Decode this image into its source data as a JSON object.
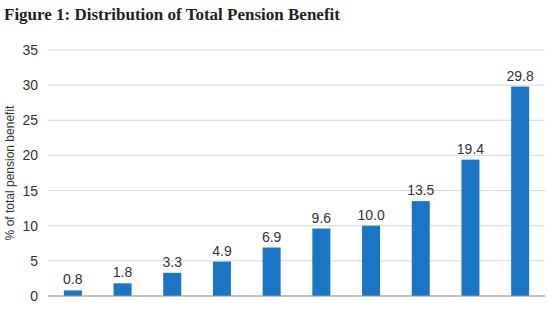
{
  "chart_data": {
    "type": "bar",
    "title": "Figure 1: Distribution of Total Pension Benefit",
    "ylabel": "% of total pension benefit",
    "categories": [
      null,
      null,
      null,
      null,
      null,
      null,
      null,
      null,
      null,
      null
    ],
    "values": [
      0.8,
      1.8,
      3.3,
      4.9,
      6.9,
      9.6,
      10.0,
      13.5,
      19.4,
      29.8
    ],
    "value_labels": [
      "0.8",
      "1.8",
      "3.3",
      "4.9",
      "6.9",
      "9.6",
      "10.0",
      "13.5",
      "19.4",
      "29.8"
    ],
    "color": "#1a76c4",
    "ylim": [
      0,
      35
    ],
    "yticks": [
      0,
      5,
      10,
      15,
      20,
      25,
      30,
      35
    ],
    "grid": true,
    "data_labels": true
  }
}
